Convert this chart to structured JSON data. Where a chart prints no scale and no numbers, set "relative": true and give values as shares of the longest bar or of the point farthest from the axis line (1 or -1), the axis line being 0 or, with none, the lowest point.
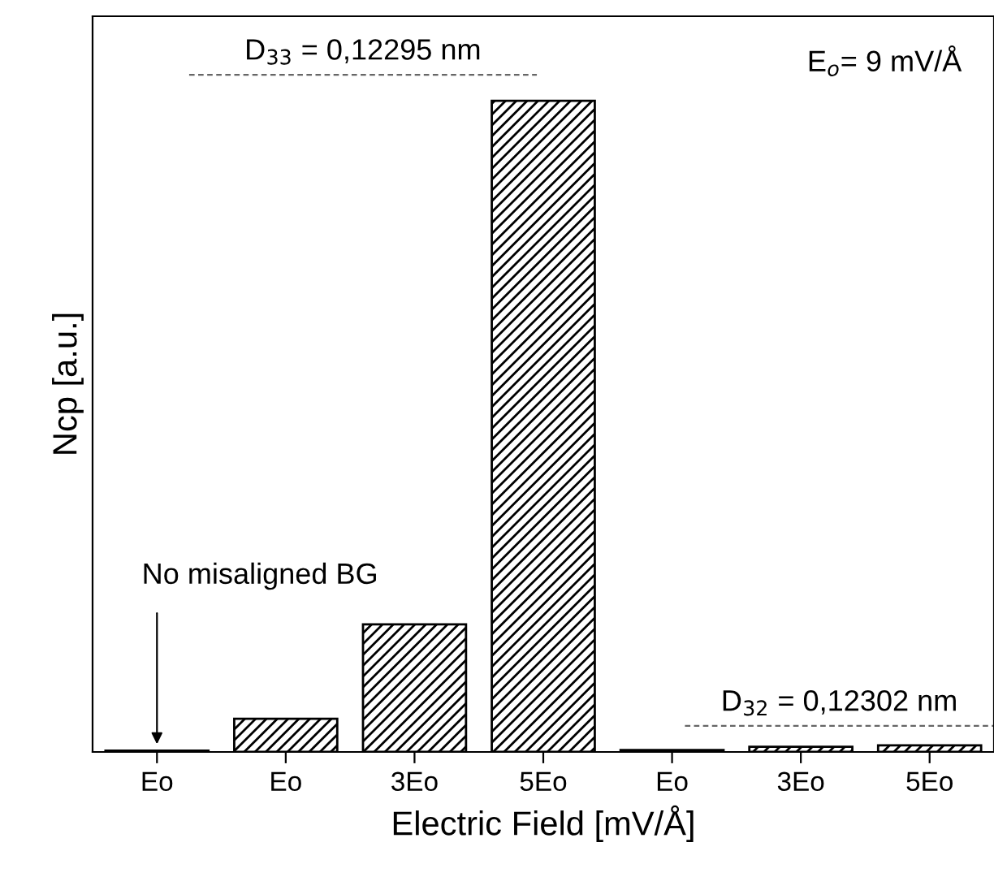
{
  "chart_data": {
    "type": "bar",
    "relative": true,
    "xlabel": "Electric Field [mV/Å]",
    "ylabel": "Ncp [a.u.]",
    "categories": [
      "Eo",
      "Eo",
      "3Eo",
      "5Eo",
      "Eo",
      "3Eo",
      "5Eo"
    ],
    "values": [
      0.002,
      0.051,
      0.196,
      1,
      0.003,
      0.008,
      0.01
    ],
    "color": "#000000",
    "annotations": [
      "E$_{o}$= 9 mV/Å",
      "No misaligned BG",
      "D$_{33}$ = 0,12295 nm",
      "D$_{32}$ = 0,12302 nm"
    ],
    "ref_lines": [
      {
        "axis": "y",
        "value": 1.04,
        "color": "#666666",
        "line_style": "dashed"
      },
      {
        "axis": "y",
        "value": 0.04,
        "color": "#666666",
        "line_style": "dashed"
      }
    ],
    "grid": false,
    "legend": false
  }
}
